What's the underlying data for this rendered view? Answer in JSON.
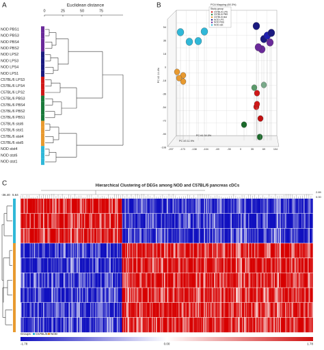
{
  "panel_a": {
    "label": "A",
    "title": "Euclidean distance",
    "axis_ticks": [
      "0",
      "25",
      "50",
      "75"
    ],
    "leaves": [
      "NOD PBS1",
      "NOD PBS3",
      "NOD PBS4",
      "NOD PBS2",
      "NOD LPS2",
      "NOD LPS3",
      "NOD LPS4",
      "NOD LPS1",
      "C57BL/6 LPS3",
      "C57BL/6 LPS4",
      "C57BL/6 LPS2",
      "C57BL/6 PBS3",
      "C57BL/6 PBS4",
      "C57BL/6 PBS2",
      "C57BL/6 PBS1",
      "C57BL/6 stst6",
      "C57BL/6 stst1",
      "C57BL/6 stst4",
      "C57BL/6 stst5",
      "NOD stst4",
      "NOD stst6",
      "NOD stst1"
    ]
  },
  "panel_b": {
    "label": "B",
    "title": "PCA Mapping (60.3%)",
    "legend_title": "Study group",
    "legend": [
      "C57BL/6 LPS",
      "C57BL/6 PBS",
      "C57BL/6 stst",
      "NOD LPS",
      "NOD PBS",
      "NOD stst"
    ],
    "y_ticks": [
      "54",
      "36",
      "18",
      "0",
      "-18",
      "-36",
      "-54",
      "-72",
      "-90",
      "-108"
    ],
    "x_ticks": [
      "-207",
      "-173",
      "-138",
      "-104",
      "-69",
      "-35",
      "0",
      "35",
      "69",
      "104"
    ],
    "x_label": "PC #1 34.0%",
    "y_label": "PC #2 14.4%",
    "z_label": "PC #3 11.9%"
  },
  "panel_c": {
    "label": "C",
    "title": "Hierarchical Clustering of DEGs among NOD and C57BL/6 pancreas cDCs",
    "row_scale": [
      "-36.40",
      "5.64"
    ],
    "col_scale": [
      "2.89",
      "0.00"
    ],
    "groups_label": "Groups:",
    "groups": [
      "C57BL/6",
      "NOD"
    ],
    "color_scale": [
      "-1.78",
      "0.00",
      "1.78"
    ]
  }
}
